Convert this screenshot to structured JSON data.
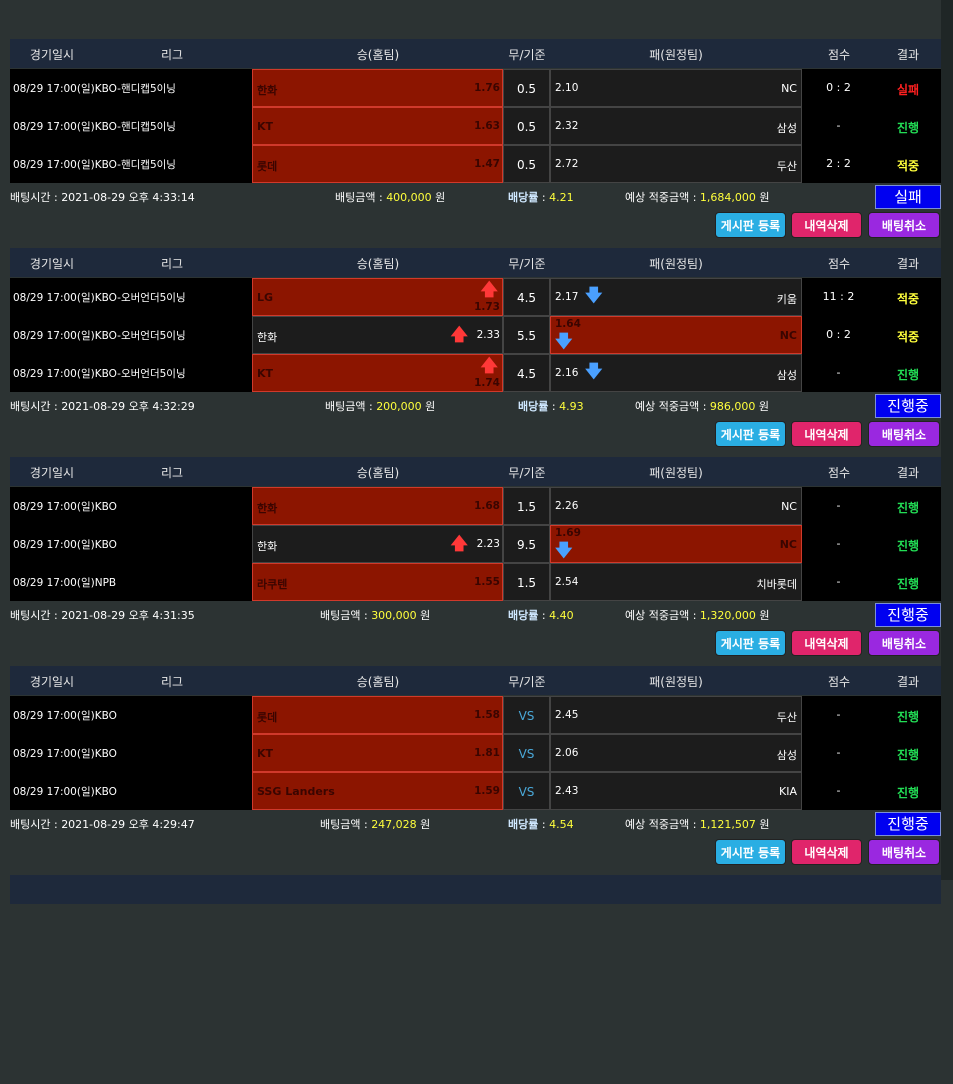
{
  "headers": [
    "경기일시",
    "리그",
    "승(홈팀)",
    "무/기준",
    "패(원정팀)",
    "점수",
    "결과"
  ],
  "labels": {
    "bet_time": "배팅시간 : ",
    "bet_amount": "배팅금액 : ",
    "odds": "배당률",
    "odds_sep": " : ",
    "expected": "예상 적중금액 : ",
    "won": " 원"
  },
  "buttons": {
    "board": "게시판 등록",
    "delete": "내역삭제",
    "cancel": "배팅취소"
  },
  "colors": {
    "selected_cell": "#8c1500",
    "fail": "#ff2020",
    "progress": "#22dd55",
    "hit": "#ffff3c",
    "status_box": "#0000f0"
  },
  "sections": [
    {
      "rows": [
        {
          "datetime": "08/29 17:00(일)",
          "league": "KBO-핸디캡5이닝",
          "home": {
            "name": "한화",
            "odds": "1.76",
            "selected": true,
            "arrow": ""
          },
          "draw": "0.5",
          "away": {
            "name": "NC",
            "odds": "2.10",
            "selected": false,
            "arrow": ""
          },
          "score": "0 : 2",
          "result": "실패",
          "result_type": "fail"
        },
        {
          "datetime": "08/29 17:00(일)",
          "league": "KBO-핸디캡5이닝",
          "home": {
            "name": "KT",
            "odds": "1.63",
            "selected": true,
            "arrow": ""
          },
          "draw": "0.5",
          "away": {
            "name": "삼성",
            "odds": "2.32",
            "selected": false,
            "arrow": ""
          },
          "score": "-",
          "result": "진행",
          "result_type": "progress"
        },
        {
          "datetime": "08/29 17:00(일)",
          "league": "KBO-핸디캡5이닝",
          "home": {
            "name": "롯데",
            "odds": "1.47",
            "selected": true,
            "arrow": ""
          },
          "draw": "0.5",
          "away": {
            "name": "두산",
            "odds": "2.72",
            "selected": false,
            "arrow": ""
          },
          "score": "2 : 2",
          "result": "적중",
          "result_type": "hit"
        }
      ],
      "bet_time": "2021-08-29 오후 4:33:14",
      "bet_amount": "400,000",
      "odds": "4.21",
      "expected": "1,684,000",
      "status": "실패"
    },
    {
      "rows": [
        {
          "datetime": "08/29 17:00(일)",
          "league": "KBO-오버언더5이닝",
          "home": {
            "name": "LG",
            "odds": "1.73",
            "selected": true,
            "arrow": "up"
          },
          "draw": "4.5",
          "away": {
            "name": "키움",
            "odds": "2.17",
            "selected": false,
            "arrow": "down"
          },
          "score": "11 : 2",
          "result": "적중",
          "result_type": "hit"
        },
        {
          "datetime": "08/29 17:00(일)",
          "league": "KBO-오버언더5이닝",
          "home": {
            "name": "한화",
            "odds": "2.33",
            "selected": false,
            "arrow": "up"
          },
          "draw": "5.5",
          "away": {
            "name": "NC",
            "odds": "1.64",
            "selected": true,
            "arrow": "down"
          },
          "score": "0 : 2",
          "result": "적중",
          "result_type": "hit"
        },
        {
          "datetime": "08/29 17:00(일)",
          "league": "KBO-오버언더5이닝",
          "home": {
            "name": "KT",
            "odds": "1.74",
            "selected": true,
            "arrow": "up"
          },
          "draw": "4.5",
          "away": {
            "name": "삼성",
            "odds": "2.16",
            "selected": false,
            "arrow": "down"
          },
          "score": "-",
          "result": "진행",
          "result_type": "progress"
        }
      ],
      "bet_time": "2021-08-29 오후 4:32:29",
      "bet_amount": "200,000",
      "odds": "4.93",
      "expected": "986,000",
      "status": "진행중"
    },
    {
      "rows": [
        {
          "datetime": "08/29 17:00(일)",
          "league": "KBO",
          "home": {
            "name": "한화",
            "odds": "1.68",
            "selected": true,
            "arrow": ""
          },
          "draw": "1.5",
          "away": {
            "name": "NC",
            "odds": "2.26",
            "selected": false,
            "arrow": ""
          },
          "score": "-",
          "result": "진행",
          "result_type": "progress"
        },
        {
          "datetime": "08/29 17:00(일)",
          "league": "KBO",
          "home": {
            "name": "한화",
            "odds": "2.23",
            "selected": false,
            "arrow": "up"
          },
          "draw": "9.5",
          "away": {
            "name": "NC",
            "odds": "1.69",
            "selected": true,
            "arrow": "down"
          },
          "score": "-",
          "result": "진행",
          "result_type": "progress"
        },
        {
          "datetime": "08/29 17:00(일)",
          "league": "NPB",
          "home": {
            "name": "라쿠텐",
            "odds": "1.55",
            "selected": true,
            "arrow": ""
          },
          "draw": "1.5",
          "away": {
            "name": "치바롯데",
            "odds": "2.54",
            "selected": false,
            "arrow": ""
          },
          "score": "-",
          "result": "진행",
          "result_type": "progress"
        }
      ],
      "bet_time": "2021-08-29 오후 4:31:35",
      "bet_amount": "300,000",
      "odds": "4.40",
      "expected": "1,320,000",
      "status": "진행중"
    },
    {
      "rows": [
        {
          "datetime": "08/29 17:00(일)",
          "league": "KBO",
          "home": {
            "name": "롯데",
            "odds": "1.58",
            "selected": true,
            "arrow": ""
          },
          "draw": "VS",
          "away": {
            "name": "두산",
            "odds": "2.45",
            "selected": false,
            "arrow": ""
          },
          "score": "-",
          "result": "진행",
          "result_type": "progress"
        },
        {
          "datetime": "08/29 17:00(일)",
          "league": "KBO",
          "home": {
            "name": "KT",
            "odds": "1.81",
            "selected": true,
            "arrow": ""
          },
          "draw": "VS",
          "away": {
            "name": "삼성",
            "odds": "2.06",
            "selected": false,
            "arrow": ""
          },
          "score": "-",
          "result": "진행",
          "result_type": "progress"
        },
        {
          "datetime": "08/29 17:00(일)",
          "league": "KBO",
          "home": {
            "name": "SSG Landers",
            "odds": "1.59",
            "selected": true,
            "arrow": ""
          },
          "draw": "VS",
          "away": {
            "name": "KIA",
            "odds": "2.43",
            "selected": false,
            "arrow": ""
          },
          "score": "-",
          "result": "진행",
          "result_type": "progress"
        }
      ],
      "bet_time": "2021-08-29 오후 4:29:47",
      "bet_amount": "247,028",
      "odds": "4.54",
      "expected": "1,121,507",
      "status": "진행중"
    }
  ]
}
